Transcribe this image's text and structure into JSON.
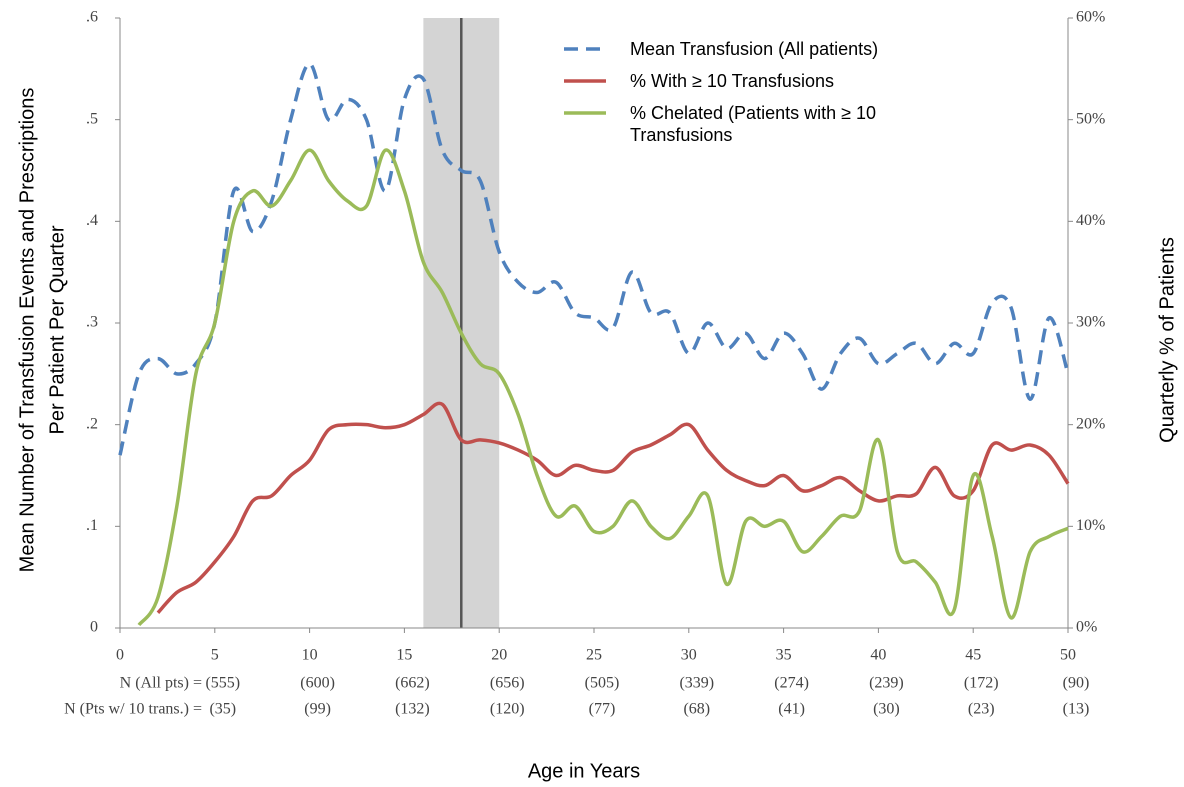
{
  "chart_data": {
    "type": "line",
    "ylabel": [
      "Mean Number of Transfusion Events and Prescriptions",
      "Per Patient Per Quarter"
    ],
    "y2label": "Quarterly % of Patients",
    "xlabel": "Age in Years",
    "x": [
      0,
      1,
      2,
      3,
      4,
      5,
      6,
      7,
      8,
      9,
      10,
      11,
      12,
      13,
      14,
      15,
      16,
      17,
      18,
      19,
      20,
      21,
      22,
      23,
      24,
      25,
      26,
      27,
      28,
      29,
      30,
      31,
      32,
      33,
      34,
      35,
      36,
      37,
      38,
      39,
      40,
      41,
      42,
      43,
      44,
      45,
      46,
      47,
      48,
      49,
      50
    ],
    "xlim": [
      0,
      50
    ],
    "xticks": [
      0,
      5,
      10,
      15,
      20,
      25,
      30,
      35,
      40,
      45,
      50
    ],
    "ylim": [
      0,
      0.6
    ],
    "yticks": [
      0,
      {
        "value": 0.1,
        "label": ".1"
      },
      {
        "value": 0.2,
        "label": ".2"
      },
      {
        "value": 0.3,
        "label": ".3"
      },
      {
        "value": 0.4,
        "label": ".4"
      },
      {
        "value": 0.5,
        "label": ".5"
      },
      {
        "value": 0.6,
        "label": ".6"
      }
    ],
    "y2lim": [
      0,
      60
    ],
    "y2ticks": [
      {
        "value": 0,
        "label": "0%"
      },
      {
        "value": 10,
        "label": "10%"
      },
      {
        "value": 20,
        "label": "20%"
      },
      {
        "value": 30,
        "label": "30%"
      },
      {
        "value": 40,
        "label": "40%"
      },
      {
        "value": 50,
        "label": "50%"
      },
      {
        "value": 60,
        "label": "60%"
      }
    ],
    "highlight_range": [
      16,
      20
    ],
    "reference_line": 18,
    "series": [
      {
        "name": "Mean Transfusion (All patients)",
        "color": "#4f81bd",
        "dashed": true,
        "values": [
          0.17,
          0.25,
          0.265,
          0.25,
          0.26,
          0.3,
          0.43,
          0.39,
          0.42,
          0.5,
          0.555,
          0.5,
          0.52,
          0.5,
          0.43,
          0.52,
          0.54,
          0.47,
          0.45,
          0.44,
          0.37,
          0.34,
          0.33,
          0.34,
          0.31,
          0.305,
          0.295,
          0.35,
          0.31,
          0.31,
          0.27,
          0.3,
          0.275,
          0.29,
          0.265,
          0.29,
          0.27,
          0.235,
          0.27,
          0.285,
          0.26,
          0.27,
          0.28,
          0.26,
          0.28,
          0.27,
          0.32,
          0.315,
          0.225,
          0.305,
          0.25
        ]
      },
      {
        "name": "% With ≥ 10 Transfusions",
        "color": "#c0504d",
        "axis": "y2",
        "values": [
          null,
          null,
          1.5,
          3.5,
          4.5,
          6.5,
          9,
          12.5,
          13,
          15,
          16.5,
          19.5,
          20,
          20,
          19.7,
          20,
          21,
          22,
          18.5,
          18.5,
          18.2,
          17.5,
          16.5,
          15,
          16,
          15.5,
          15.5,
          17.3,
          18,
          19,
          20,
          17.5,
          15.5,
          14.5,
          14,
          15,
          13.5,
          14,
          14.8,
          13.5,
          12.5,
          13,
          13.2,
          15.8,
          13,
          13.5,
          18,
          17.5,
          18,
          17,
          14.2
        ]
      },
      {
        "name": "% Chelated (Patients with ≥ 10 Transfusions",
        "color": "#9bbb59",
        "axis": "y2",
        "values": [
          null,
          0.3,
          3,
          12,
          25,
          30,
          40,
          43,
          41.5,
          44,
          47,
          44,
          42,
          41.5,
          47,
          43,
          36,
          33,
          29,
          26,
          25,
          21,
          15,
          11,
          12,
          9.5,
          10,
          12.5,
          10,
          8.8,
          11,
          13,
          4.3,
          10.5,
          10,
          10.5,
          7.5,
          9,
          11,
          11.5,
          18.5,
          7.5,
          6.5,
          4.5,
          1.8,
          15,
          9,
          1,
          7.5,
          9,
          9.8
        ]
      }
    ],
    "n_rows": [
      {
        "label": "N (All pts) =",
        "values": [
          "(555)",
          "(600)",
          "(662)",
          "(656)",
          "(505)",
          "(339)",
          "(274)",
          "(239)",
          "(172)",
          "(90)"
        ]
      },
      {
        "label": "N (Pts w/ 10 trans.) =",
        "values": [
          "(35)",
          "(99)",
          "(132)",
          "(120)",
          "(77)",
          "(68)",
          "(41)",
          "(30)",
          "(23)",
          "(13)"
        ]
      }
    ]
  }
}
